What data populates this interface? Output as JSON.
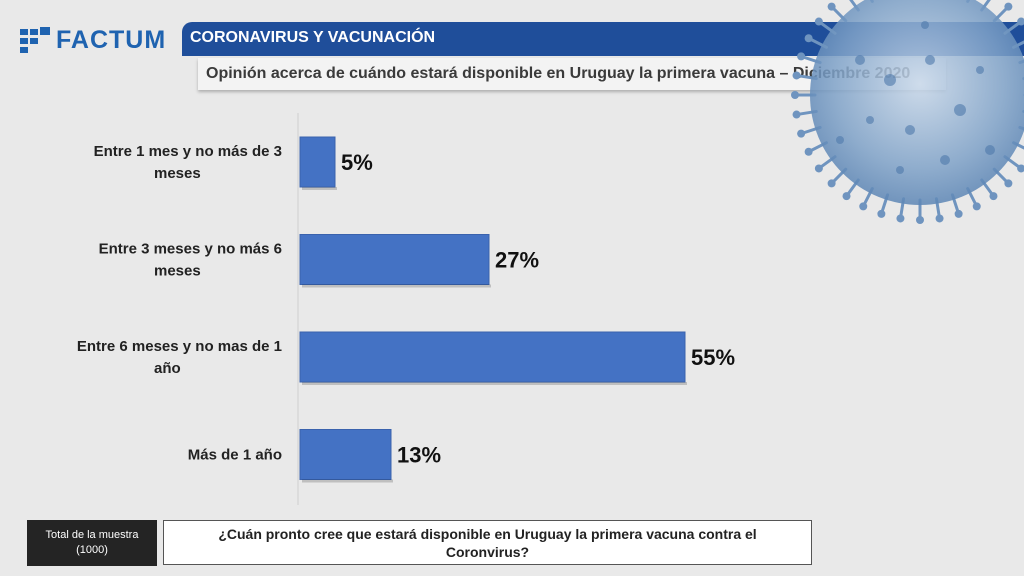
{
  "brand": {
    "name": "FACTUM"
  },
  "header": {
    "title": "CORONAVIRUS Y VACUNACIÓN",
    "subtitle": "Opinión acerca de cuándo estará disponible en Uruguay la primera vacuna – Diciembre 2020"
  },
  "chart_data": {
    "type": "bar",
    "orientation": "horizontal",
    "categories": [
      [
        "Entre 1 mes y no más de 3",
        "meses"
      ],
      [
        "Entre 3 meses y no más 6",
        "meses"
      ],
      [
        "Entre 6 meses y no mas de 1",
        "año"
      ],
      [
        "Más de 1 año"
      ]
    ],
    "values": [
      5,
      27,
      55,
      13
    ],
    "value_labels": [
      "5%",
      "27%",
      "55%",
      "13%"
    ],
    "unit": "%",
    "bar_color": "#4472c4",
    "xlim": [
      0,
      60
    ],
    "grid": false
  },
  "footer": {
    "sample_label": "Total de la muestra",
    "sample_size": "(1000)",
    "question": "¿Cuán pronto cree que estará disponible en Uruguay la primera vacuna contra el Coronvirus?"
  },
  "colors": {
    "accent": "#1f4e9a",
    "brand": "#1f63b0"
  }
}
